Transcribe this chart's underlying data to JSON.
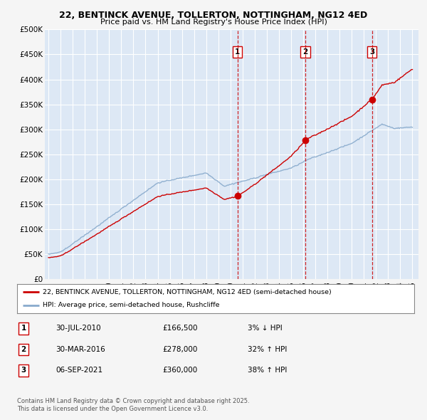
{
  "title": "22, BENTINCK AVENUE, TOLLERTON, NOTTINGHAM, NG12 4ED",
  "subtitle": "Price paid vs. HM Land Registry's House Price Index (HPI)",
  "ylim": [
    0,
    500000
  ],
  "yticks": [
    0,
    50000,
    100000,
    150000,
    200000,
    250000,
    300000,
    350000,
    400000,
    450000,
    500000
  ],
  "ytick_labels": [
    "£0",
    "£50K",
    "£100K",
    "£150K",
    "£200K",
    "£250K",
    "£300K",
    "£350K",
    "£400K",
    "£450K",
    "£500K"
  ],
  "xlim_start": 1994.7,
  "xlim_end": 2025.5,
  "background_color": "#f5f5f5",
  "plot_bg_color": "#dde8f5",
  "grid_color": "#ffffff",
  "red_line_color": "#cc0000",
  "blue_line_color": "#88aacc",
  "transaction_line_color": "#cc0000",
  "transactions": [
    {
      "year": 2010.58,
      "price": 166500,
      "label": "1",
      "date": "30-JUL-2010",
      "price_str": "£166,500",
      "change": "3% ↓ HPI"
    },
    {
      "year": 2016.17,
      "price": 278000,
      "label": "2",
      "date": "30-MAR-2016",
      "price_str": "£278,000",
      "change": "32% ↑ HPI"
    },
    {
      "year": 2021.68,
      "price": 360000,
      "label": "3",
      "date": "06-SEP-2021",
      "price_str": "£360,000",
      "change": "38% ↑ HPI"
    }
  ],
  "legend_line1": "22, BENTINCK AVENUE, TOLLERTON, NOTTINGHAM, NG12 4ED (semi-detached house)",
  "legend_line2": "HPI: Average price, semi-detached house, Rushcliffe",
  "footer1": "Contains HM Land Registry data © Crown copyright and database right 2025.",
  "footer2": "This data is licensed under the Open Government Licence v3.0."
}
